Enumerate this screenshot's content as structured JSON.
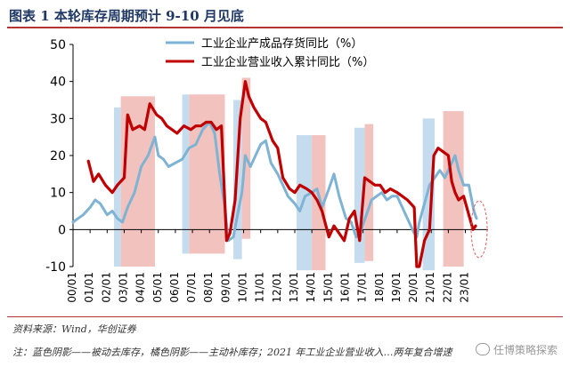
{
  "header": {
    "title": "图表 1   本轮库存周期预计 9-10 月见底"
  },
  "chart_data": {
    "type": "line",
    "title": "",
    "xlabel": "",
    "ylabel": "",
    "ylim": [
      -10,
      50
    ],
    "yticks": [
      -10,
      0,
      10,
      20,
      30,
      40,
      50
    ],
    "xlim": [
      2000.0,
      2024.33
    ],
    "xticks": [
      "00/01",
      "01/01",
      "02/01",
      "03/01",
      "04/01",
      "05/01",
      "06/01",
      "07/01",
      "08/01",
      "09/01",
      "10/01",
      "11/01",
      "12/01",
      "13/01",
      "14/01",
      "15/01",
      "16/01",
      "17/01",
      "18/01",
      "19/01",
      "20/01",
      "21/01",
      "22/01",
      "23/01"
    ],
    "grid": false,
    "legend_position": "top-center",
    "colors": {
      "blue": "#7eb3d3",
      "red": "#c00000",
      "blue_shade": "#c5dcef",
      "red_shade": "#f2c2bf"
    },
    "series": [
      {
        "name": "工业企业产成品存货同比（%）",
        "color": "#7eb3d3",
        "x": [
          2000.0,
          2000.3,
          2000.6,
          2001.0,
          2001.3,
          2001.6,
          2002.0,
          2002.3,
          2002.6,
          2002.9,
          2003.2,
          2003.6,
          2004.0,
          2004.4,
          2004.8,
          2005.0,
          2005.3,
          2005.6,
          2006.0,
          2006.4,
          2006.8,
          2007.2,
          2007.6,
          2008.0,
          2008.3,
          2008.6,
          2008.9,
          2009.1,
          2009.4,
          2009.6,
          2009.9,
          2010.1,
          2010.4,
          2010.7,
          2011.0,
          2011.3,
          2011.6,
          2012.0,
          2012.3,
          2012.6,
          2013.0,
          2013.3,
          2013.6,
          2014.0,
          2014.3,
          2014.6,
          2015.0,
          2015.3,
          2015.6,
          2016.0,
          2016.3,
          2016.6,
          2016.9,
          2017.2,
          2017.5,
          2017.8,
          2018.1,
          2018.4,
          2018.7,
          2019.0,
          2019.3,
          2019.6,
          2020.0,
          2020.15,
          2020.3,
          2020.6,
          2020.9,
          2021.2,
          2021.5,
          2021.8,
          2022.1,
          2022.4,
          2022.6,
          2022.9,
          2023.2,
          2023.5,
          2023.65
        ],
        "values": [
          2,
          3,
          4,
          6,
          8,
          7,
          4,
          5,
          3,
          2,
          6,
          10,
          17,
          20,
          25,
          20,
          19,
          17,
          18,
          19,
          22,
          23,
          27,
          29,
          26,
          15,
          6,
          -3,
          -2,
          3,
          10,
          20,
          17,
          20,
          23,
          24,
          18,
          15,
          12,
          9,
          7,
          5,
          9,
          10,
          11,
          6,
          11,
          15,
          9,
          3,
          2,
          -2,
          0,
          4,
          8,
          9,
          10,
          8,
          9,
          9,
          6,
          3,
          -1,
          -2,
          2,
          7,
          12,
          14,
          16,
          14,
          17,
          20,
          16,
          12,
          12,
          5,
          3
        ]
      },
      {
        "name": "工业企业营业收入累计同比（%）",
        "color": "#c00000",
        "x": [
          2000.9,
          2001.2,
          2001.5,
          2001.9,
          2002.3,
          2002.6,
          2003.0,
          2003.2,
          2003.5,
          2003.9,
          2004.2,
          2004.5,
          2004.9,
          2005.2,
          2005.5,
          2005.8,
          2006.1,
          2006.5,
          2006.9,
          2007.2,
          2007.5,
          2007.8,
          2008.1,
          2008.4,
          2008.7,
          2009.0,
          2009.2,
          2009.5,
          2009.8,
          2010.1,
          2010.3,
          2010.6,
          2011.0,
          2011.3,
          2011.7,
          2012.0,
          2012.3,
          2012.7,
          2013.0,
          2013.3,
          2013.7,
          2014.0,
          2014.3,
          2014.6,
          2015.0,
          2015.3,
          2015.6,
          2015.9,
          2016.2,
          2016.5,
          2016.8,
          2017.1,
          2017.4,
          2017.7,
          2018.0,
          2018.3,
          2018.6,
          2019.0,
          2019.3,
          2019.6,
          2020.0,
          2020.15,
          2020.3,
          2020.6,
          2020.9,
          2021.15,
          2021.4,
          2021.7,
          2022.0,
          2022.2,
          2022.4,
          2022.6,
          2022.9,
          2023.2,
          2023.45,
          2023.6
        ],
        "values": [
          18.5,
          13,
          15,
          12,
          10,
          12,
          14,
          31,
          27,
          28,
          27,
          34,
          31,
          30,
          28,
          27,
          26,
          28,
          27,
          28,
          28,
          29,
          29,
          27,
          28,
          -3,
          -1,
          8,
          30,
          40,
          36,
          33,
          30,
          29,
          24,
          22,
          14,
          11,
          10,
          12,
          11,
          10,
          8,
          5,
          -2,
          1,
          -1,
          -3,
          3,
          5,
          -3,
          14,
          13,
          12,
          12,
          10,
          11,
          10,
          9,
          8,
          6,
          -10,
          -10,
          -3,
          0,
          20,
          22,
          21,
          20,
          13,
          10,
          8,
          9,
          4,
          0,
          1
        ]
      }
    ],
    "shaded_regions": [
      {
        "type": "被动去库存",
        "x0": 2002.4,
        "x1": 2002.8,
        "y0": -10,
        "y1": 33
      },
      {
        "type": "主动补库存",
        "x0": 2002.8,
        "x1": 2004.8,
        "y0": -10,
        "y1": 36
      },
      {
        "type": "被动去库存",
        "x0": 2006.4,
        "x1": 2006.8,
        "y0": -6.5,
        "y1": 36.5
      },
      {
        "type": "主动补库存",
        "x0": 2006.8,
        "x1": 2008.9,
        "y0": -6.5,
        "y1": 36.5
      },
      {
        "type": "被动去库存",
        "x0": 2009.4,
        "x1": 2009.9,
        "y0": -8,
        "y1": 35
      },
      {
        "type": "主动补库存",
        "x0": 2009.9,
        "x1": 2010.4,
        "y0": -2.5,
        "y1": 41
      },
      {
        "type": "被动去库存",
        "x0": 2013.1,
        "x1": 2014.0,
        "y0": -11,
        "y1": 25.5
      },
      {
        "type": "主动补库存",
        "x0": 2014.0,
        "x1": 2014.8,
        "y0": -11,
        "y1": 25.5
      },
      {
        "type": "被动去库存",
        "x0": 2016.5,
        "x1": 2017.1,
        "y0": -9,
        "y1": 27.5
      },
      {
        "type": "主动补库存",
        "x0": 2017.1,
        "x1": 2017.6,
        "y0": -8.5,
        "y1": 28.5
      },
      {
        "type": "被动去库存",
        "x0": 2020.5,
        "x1": 2021.2,
        "y0": -11,
        "y1": 30
      },
      {
        "type": "主动补库存",
        "x0": 2021.7,
        "x1": 2022.9,
        "y0": -10,
        "y1": 32
      }
    ]
  },
  "notes": {
    "source": "资料来源：Wind，华创证券",
    "footnote": "注：蓝色阴影——被动去库存，橘色阴影——主动补库存；2021 年工业企业营业收入…两年复合增速"
  },
  "watermark": "任博策略探索"
}
